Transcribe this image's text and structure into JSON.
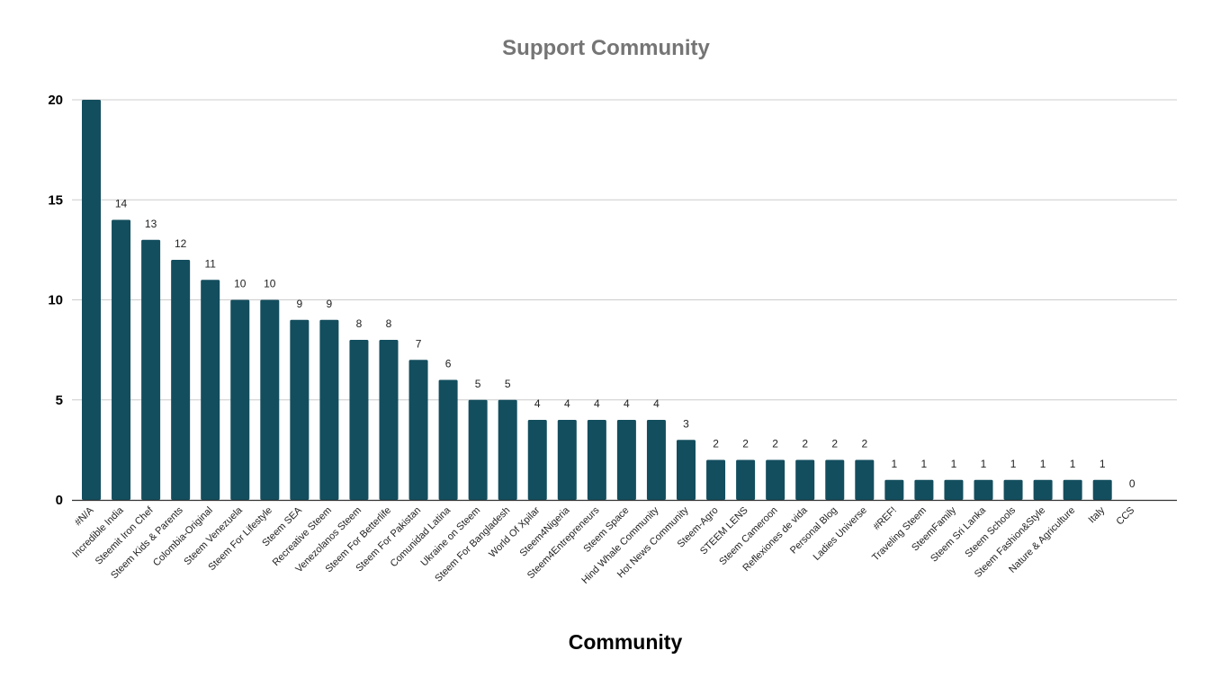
{
  "chart_data": {
    "type": "bar",
    "title": "Support Community",
    "xlabel": "Community",
    "ylabel": "",
    "ylim": [
      0,
      20
    ],
    "yticks": [
      0,
      5,
      10,
      15,
      20
    ],
    "grid": true,
    "bar_color": "#134e5e",
    "categories": [
      "#N/A",
      "Incredible India",
      "Steemit Iron Chef",
      "Steem Kids & Parents",
      "Colombia-Original",
      "Steem Venezuela",
      "Steem For Lifestyle",
      "Steem SEA",
      "Recreative Steem",
      "Venezolanos Steem",
      "Steem For Betterlife",
      "Steem For Pakistan",
      "Comunidad Latina",
      "Ukraine on Steem",
      "Steem For Bangladesh",
      "World Of Xpilar",
      "Steem4Nigeria",
      "Steem4Entrepreneurs",
      "Steem Space",
      "Hind Whale Community",
      "Hot News Community",
      "Steem-Agro",
      "STEEM LENS",
      "Steem Cameroon",
      "Reflexiones de vida",
      "Personal Blog",
      "Ladies Universe",
      "#REF!",
      "Traveling Steem",
      "SteemFamily",
      "Steem Sri Lanka",
      "Steem Schools",
      "Steem Fashion&Style",
      "Nature & Agriculture",
      "Italy",
      "CCS"
    ],
    "values": [
      20,
      14,
      13,
      12,
      11,
      10,
      10,
      9,
      9,
      8,
      8,
      7,
      6,
      5,
      5,
      4,
      4,
      4,
      4,
      4,
      3,
      2,
      2,
      2,
      2,
      2,
      2,
      1,
      1,
      1,
      1,
      1,
      1,
      1,
      1,
      0
    ],
    "data_labels": [
      "",
      "14",
      "13",
      "12",
      "11",
      "10",
      "10",
      "9",
      "9",
      "8",
      "8",
      "7",
      "6",
      "5",
      "5",
      "4",
      "4",
      "4",
      "4",
      "4",
      "3",
      "2",
      "2",
      "2",
      "2",
      "2",
      "2",
      "1",
      "1",
      "1",
      "1",
      "1",
      "1",
      "1",
      "1",
      "0"
    ]
  }
}
